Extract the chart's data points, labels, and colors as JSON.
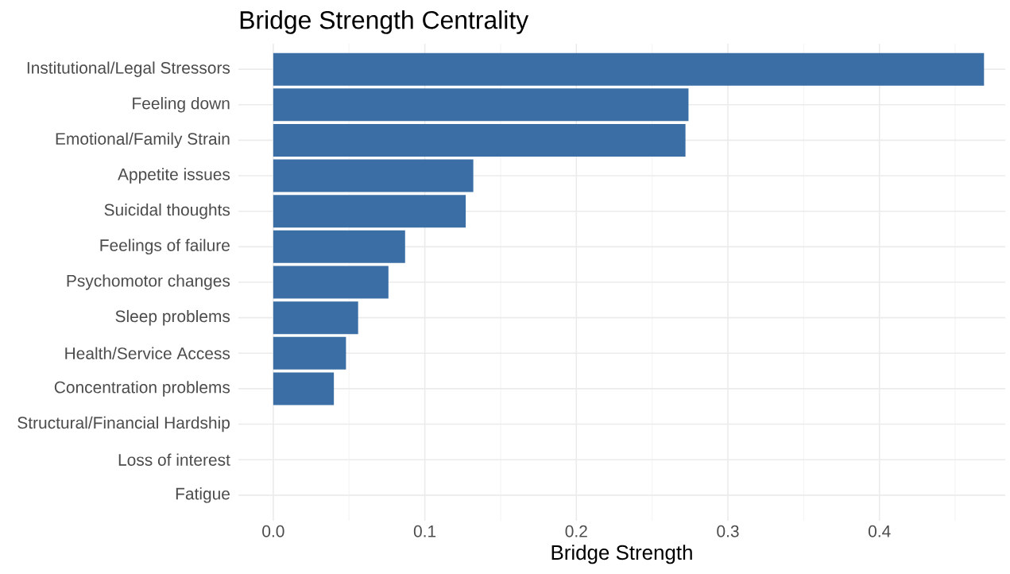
{
  "chart_data": {
    "type": "bar",
    "orientation": "horizontal",
    "title": "Bridge Strength Centrality",
    "xlabel": "Bridge Strength",
    "categories": [
      "Institutional/Legal Stressors",
      "Feeling down",
      "Emotional/Family Strain",
      "Appetite issues",
      "Suicidal thoughts",
      "Feelings of failure",
      "Psychomotor changes",
      "Sleep problems",
      "Health/Service Access",
      "Concentration problems",
      "Structural/Financial Hardship",
      "Loss of interest",
      "Fatigue"
    ],
    "values": [
      0.469,
      0.274,
      0.272,
      0.132,
      0.127,
      0.087,
      0.076,
      0.056,
      0.048,
      0.04,
      0,
      0,
      0
    ],
    "color": "#3a6ea5",
    "xlim": [
      -0.023,
      0.483
    ],
    "xticks": [
      {
        "value": 0,
        "label": "0.0"
      },
      {
        "value": 0.05,
        "label": null
      },
      {
        "value": 0.1,
        "label": "0.1"
      },
      {
        "value": 0.15,
        "label": null
      },
      {
        "value": 0.2,
        "label": "0.2"
      },
      {
        "value": 0.25,
        "label": null
      },
      {
        "value": 0.3,
        "label": "0.3"
      },
      {
        "value": 0.35,
        "label": null
      },
      {
        "value": 0.4,
        "label": "0.4"
      },
      {
        "value": 0.45,
        "label": null
      }
    ],
    "grid": true
  }
}
